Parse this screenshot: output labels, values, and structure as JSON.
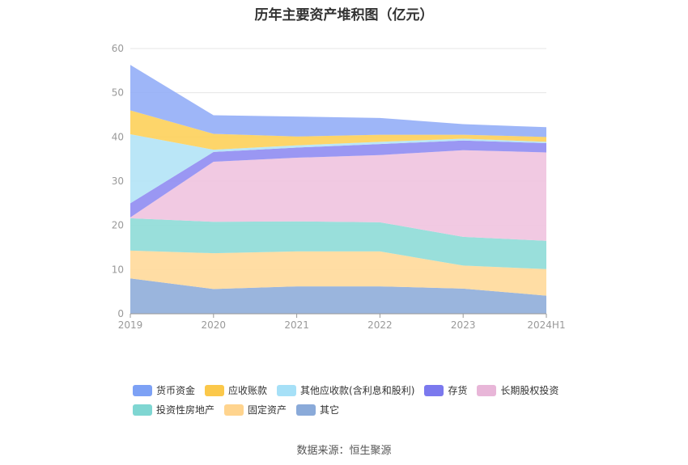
{
  "chart_data": {
    "type": "area",
    "stacked": true,
    "title": "历年主要资产堆积图（亿元）",
    "categories": [
      "2019",
      "2020",
      "2021",
      "2022",
      "2023",
      "2024H1"
    ],
    "ylim": [
      0,
      60
    ],
    "yticks": [
      "0",
      "10",
      "20",
      "30",
      "40",
      "50",
      "60"
    ],
    "grid": true,
    "legend_position": "bottom",
    "series": [
      {
        "name": "其它",
        "color": "#8fadd9",
        "values": [
          8.0,
          5.6,
          6.2,
          6.2,
          5.7,
          4.1
        ]
      },
      {
        "name": "固定资产",
        "color": "#ffd99a",
        "values": [
          6.3,
          8.1,
          7.9,
          7.9,
          5.2,
          6.0
        ]
      },
      {
        "name": "投资性房地产",
        "color": "#8edbd7",
        "values": [
          7.3,
          7.1,
          6.8,
          6.6,
          6.5,
          6.4
        ]
      },
      {
        "name": "长期股权投资",
        "color": "#f0c3df",
        "values": [
          0.2,
          13.6,
          14.4,
          15.2,
          19.6,
          20.0
        ]
      },
      {
        "name": "存货",
        "color": "#8f8cf2",
        "values": [
          3.2,
          2.2,
          2.3,
          2.5,
          2.2,
          2.1
        ]
      },
      {
        "name": "其他应收款(含利息和股利)",
        "color": "#b3e3f6",
        "values": [
          15.6,
          0.5,
          0.5,
          0.5,
          0.4,
          0.3
        ]
      },
      {
        "name": "应收账款",
        "color": "#fdd05a",
        "values": [
          5.4,
          3.6,
          2.0,
          1.6,
          0.9,
          1.1
        ]
      },
      {
        "name": "货币资金",
        "color": "#93aef7",
        "values": [
          10.3,
          4.2,
          4.5,
          3.8,
          2.4,
          2.2
        ]
      }
    ]
  },
  "legend": {
    "row1": [
      {
        "label": "货币资金",
        "color": "#7da1f5"
      },
      {
        "label": "应收账款",
        "color": "#fbc84a"
      },
      {
        "label": "其他应收款(含利息和股利)",
        "color": "#a6e0f7"
      },
      {
        "label": "存货",
        "color": "#7b79ee"
      },
      {
        "label": "长期股权投资",
        "color": "#e8b6d8"
      }
    ],
    "row2": [
      {
        "label": "投资性房地产",
        "color": "#7fd6d2"
      },
      {
        "label": "固定资产",
        "color": "#ffd48e"
      },
      {
        "label": "其它",
        "color": "#8aaad9"
      }
    ]
  },
  "source": "数据来源：恒生聚源"
}
